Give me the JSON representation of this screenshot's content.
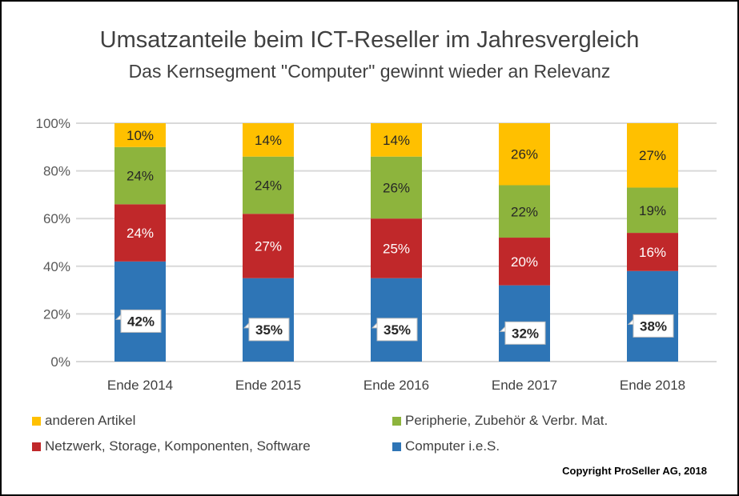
{
  "chart_data": {
    "type": "bar",
    "stacked": true,
    "percent": true,
    "title": "Umsatzanteile beim ICT-Reseller im Jahresvergleich",
    "subtitle": "Das Kernsegment \"Computer\" gewinnt wieder an Relevanz",
    "xlabel": "",
    "ylabel": "",
    "ylim": [
      0,
      100
    ],
    "yticks": [
      "0%",
      "20%",
      "40%",
      "60%",
      "80%",
      "100%"
    ],
    "grid": true,
    "legend_position": "bottom",
    "categories": [
      "Ende 2014",
      "Ende 2015",
      "Ende 2016",
      "Ende 2017",
      "Ende 2018"
    ],
    "series": [
      {
        "name": "Computer i.e.S.",
        "color": "#2E75B6",
        "label_color": "#262626",
        "callout": true,
        "values": [
          42,
          35,
          35,
          32,
          38
        ]
      },
      {
        "name": "Netzwerk, Storage, Komponenten, Software",
        "color": "#C0282A",
        "label_color": "#ffffff",
        "callout": false,
        "values": [
          24,
          27,
          25,
          20,
          16
        ]
      },
      {
        "name": "Peripherie, Zubehör & Verbr. Mat.",
        "color": "#8DB43D",
        "label_color": "#262626",
        "callout": false,
        "values": [
          24,
          24,
          26,
          22,
          19
        ]
      },
      {
        "name": "anderen Artikel",
        "color": "#FFC000",
        "label_color": "#262626",
        "callout": false,
        "values": [
          10,
          14,
          14,
          26,
          27
        ]
      }
    ]
  },
  "legend": {
    "items": [
      {
        "label": "anderen Artikel",
        "color": "#FFC000"
      },
      {
        "label": "Peripherie, Zubehör & Verbr. Mat.",
        "color": "#8DB43D"
      },
      {
        "label": "Netzwerk, Storage, Komponenten, Software",
        "color": "#C0282A"
      },
      {
        "label": "Computer i.e.S.",
        "color": "#2E75B6"
      }
    ]
  },
  "copyright": "Copyright ProSeller AG, 2018"
}
